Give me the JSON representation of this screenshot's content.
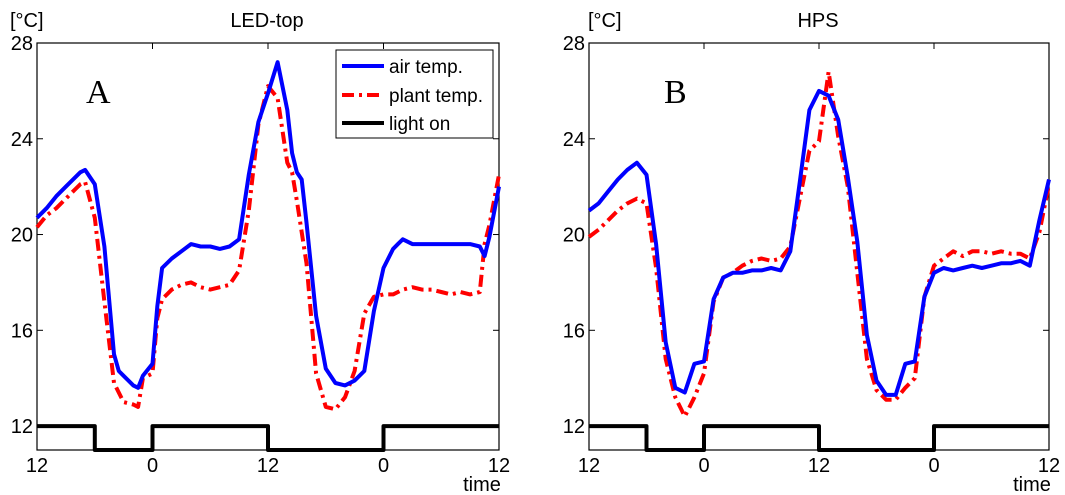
{
  "chart_data": [
    {
      "type": "line",
      "title": "LED-top",
      "panel_label": "A",
      "unit_label": "[°C]",
      "xlabel": "time",
      "ylim": [
        11,
        28
      ],
      "xlim": [
        0,
        48
      ],
      "yticks": [
        12,
        16,
        20,
        24,
        28
      ],
      "xticks": [
        0,
        12,
        24,
        36,
        48
      ],
      "xtick_labels": [
        "12",
        "0",
        "12",
        "0",
        "12"
      ],
      "legend": {
        "position": "top-right",
        "entries": [
          "air temp.",
          "plant temp.",
          "light on"
        ]
      },
      "grid": false,
      "series": [
        {
          "name": "air temp.",
          "color": "#0000ff",
          "style": "solid",
          "x": [
            0,
            1,
            2,
            3,
            4,
            4.5,
            5,
            6,
            7,
            8,
            8.5,
            9,
            10,
            10.5,
            11,
            12,
            12.5,
            13,
            14,
            15,
            16,
            17,
            18,
            19,
            20,
            21,
            22,
            23,
            24,
            25,
            26,
            26.5,
            27,
            27.5,
            28,
            29,
            30,
            31,
            32,
            33,
            34,
            35,
            36,
            37,
            37.5,
            38,
            39,
            40,
            41,
            42,
            43,
            44,
            45,
            46,
            46.5,
            47,
            48
          ],
          "y": [
            20.7,
            21.1,
            21.6,
            22.0,
            22.4,
            22.6,
            22.7,
            22.1,
            19.5,
            15.0,
            14.3,
            14.1,
            13.7,
            13.6,
            14.1,
            14.6,
            17.0,
            18.6,
            19.0,
            19.3,
            19.6,
            19.5,
            19.5,
            19.4,
            19.5,
            19.8,
            22.5,
            24.7,
            25.9,
            27.2,
            25.2,
            23.4,
            22.6,
            22.3,
            20.5,
            16.6,
            14.4,
            13.8,
            13.7,
            13.9,
            14.3,
            16.8,
            18.6,
            19.4,
            19.6,
            19.8,
            19.6,
            19.6,
            19.6,
            19.6,
            19.6,
            19.6,
            19.6,
            19.5,
            19.1,
            19.9,
            22.0
          ]
        },
        {
          "name": "plant temp.",
          "color": "#ff0000",
          "style": "dashdot",
          "x": [
            0,
            1,
            2,
            3,
            4,
            4.5,
            5,
            6,
            7,
            8,
            9,
            10,
            10.5,
            11,
            12,
            12.5,
            13,
            14,
            15,
            16,
            17,
            18,
            19,
            20,
            21,
            22,
            23,
            24,
            25,
            26,
            26.5,
            27,
            28,
            29,
            30,
            31,
            32,
            33,
            34,
            35,
            36,
            37,
            38,
            39,
            40,
            41,
            42,
            43,
            44,
            45,
            46,
            46.5,
            47,
            48
          ],
          "y": [
            20.3,
            20.8,
            21.1,
            21.5,
            21.9,
            22.1,
            22.2,
            20.7,
            17.2,
            13.8,
            13.0,
            12.9,
            12.8,
            14.0,
            14.2,
            16.5,
            17.3,
            17.7,
            17.9,
            18.0,
            17.8,
            17.7,
            17.8,
            17.9,
            18.5,
            21.0,
            24.6,
            26.2,
            25.7,
            23.0,
            22.6,
            21.4,
            18.8,
            14.2,
            12.8,
            12.7,
            13.2,
            14.3,
            16.7,
            17.4,
            17.5,
            17.5,
            17.7,
            17.8,
            17.7,
            17.7,
            17.6,
            17.5,
            17.6,
            17.5,
            17.6,
            19.6,
            20.4,
            22.5
          ]
        },
        {
          "name": "light on",
          "color": "#000000",
          "style": "solid",
          "x": [
            0,
            6,
            6,
            12,
            12,
            24,
            24,
            36,
            36,
            48
          ],
          "y": [
            12,
            12,
            11,
            11,
            12,
            12,
            11,
            11,
            12,
            12
          ]
        }
      ]
    },
    {
      "type": "line",
      "title": "HPS",
      "panel_label": "B",
      "unit_label": "[°C]",
      "xlabel": "time",
      "ylim": [
        11,
        28
      ],
      "xlim": [
        0,
        48
      ],
      "yticks": [
        12,
        16,
        20,
        24,
        28
      ],
      "xticks": [
        0,
        12,
        24,
        36,
        48
      ],
      "xtick_labels": [
        "12",
        "0",
        "12",
        "0",
        "12"
      ],
      "grid": false,
      "series": [
        {
          "name": "air temp.",
          "color": "#0000ff",
          "style": "solid",
          "x": [
            0,
            1,
            2,
            3,
            4,
            5,
            6,
            7,
            8,
            9,
            10,
            11,
            12,
            13,
            14,
            15,
            16,
            17,
            18,
            19,
            20,
            21,
            22,
            23,
            24,
            25,
            26,
            27,
            28,
            29,
            30,
            31,
            32,
            33,
            34,
            35,
            36,
            37,
            38,
            39,
            40,
            41,
            42,
            43,
            44,
            45,
            46,
            47,
            48
          ],
          "y": [
            21.0,
            21.3,
            21.8,
            22.3,
            22.7,
            23.0,
            22.5,
            19.6,
            15.5,
            13.6,
            13.4,
            14.6,
            14.7,
            17.3,
            18.2,
            18.4,
            18.4,
            18.5,
            18.5,
            18.6,
            18.5,
            19.3,
            22.2,
            25.2,
            26.0,
            25.8,
            24.8,
            22.4,
            19.7,
            15.8,
            13.9,
            13.3,
            13.3,
            14.6,
            14.7,
            17.4,
            18.4,
            18.6,
            18.5,
            18.6,
            18.7,
            18.6,
            18.7,
            18.8,
            18.8,
            18.9,
            18.7,
            20.6,
            22.3
          ]
        },
        {
          "name": "plant temp.",
          "color": "#ff0000",
          "style": "dashdot",
          "x": [
            0,
            1,
            2,
            3,
            4,
            5,
            6,
            7,
            8,
            9,
            10,
            11,
            12,
            13,
            14,
            15,
            16,
            17,
            18,
            19,
            20,
            21,
            22,
            23,
            24,
            25,
            26,
            27,
            28,
            29,
            30,
            31,
            32,
            33,
            34,
            35,
            36,
            37,
            38,
            39,
            40,
            41,
            42,
            43,
            44,
            45,
            46,
            47,
            48
          ],
          "y": [
            19.9,
            20.2,
            20.6,
            21.0,
            21.3,
            21.5,
            21.3,
            18.6,
            14.8,
            13.2,
            12.4,
            13.2,
            14.2,
            17.2,
            18.2,
            18.4,
            18.7,
            18.9,
            19.0,
            18.9,
            19.0,
            19.5,
            21.5,
            23.5,
            23.9,
            26.8,
            24.1,
            22.0,
            18.4,
            14.8,
            13.5,
            13.1,
            13.1,
            13.6,
            14.0,
            17.4,
            18.7,
            19.0,
            19.3,
            19.1,
            19.3,
            19.3,
            19.2,
            19.3,
            19.2,
            19.2,
            19.0,
            20.1,
            22.1
          ]
        },
        {
          "name": "light on",
          "color": "#000000",
          "style": "solid",
          "x": [
            0,
            6,
            6,
            12,
            12,
            24,
            24,
            36,
            36,
            48
          ],
          "y": [
            12,
            12,
            11,
            11,
            12,
            12,
            11,
            11,
            12,
            12
          ]
        }
      ]
    }
  ]
}
